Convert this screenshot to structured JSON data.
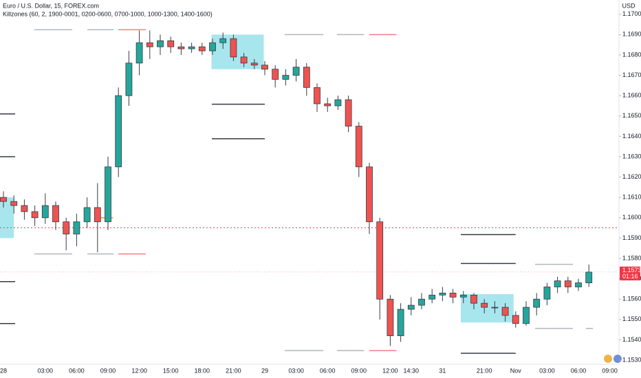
{
  "chart_data": {
    "type": "candlestick",
    "title": "Euro / U.S. Dollar, 15, FOREX.com",
    "subtitle": "Killzones (60, 2, 1900-0001, 0200-0600, 0700-1000, 1000-1300, 1400-1600)",
    "currency": "USD",
    "categories": [
      "28",
      null,
      null,
      null,
      "03:00",
      null,
      null,
      "06:00",
      null,
      null,
      "09:00",
      null,
      null,
      "12:00",
      null,
      null,
      "15:00",
      null,
      null,
      "18:00",
      null,
      null,
      "21:00",
      null,
      null,
      "29",
      null,
      null,
      "03:00",
      null,
      null,
      "06:00",
      null,
      null,
      "09:00",
      null,
      null,
      "12:00",
      null,
      "14:30",
      null,
      null,
      "31",
      null,
      null,
      null,
      "21:00",
      null,
      null,
      "Nov",
      null,
      null,
      "03:00",
      null,
      null,
      "06:00",
      null,
      null,
      "09:00"
    ],
    "open": [
      1.161,
      1.1608,
      1.1606,
      1.1603,
      1.16,
      1.1606,
      1.1598,
      1.1592,
      1.1598,
      1.1605,
      1.1598,
      1.1625,
      1.166,
      1.1676,
      1.1686,
      1.1684,
      1.1687,
      1.1684,
      1.1683,
      1.1684,
      1.1682,
      1.1686,
      1.1688,
      1.1679,
      1.1676,
      1.1675,
      1.1673,
      1.1668,
      1.167,
      1.1674,
      1.1664,
      1.1656,
      1.1655,
      1.1658,
      1.1645,
      1.1625,
      1.1598,
      1.156,
      1.1542,
      1.1555,
      1.1557,
      1.156,
      1.1562,
      1.1563,
      1.1561,
      1.1562,
      1.1558,
      1.1556,
      1.1556,
      1.1552,
      1.1548,
      1.1556,
      1.156,
      1.1566,
      1.1569,
      1.1566,
      1.1568,
      null,
      null
    ],
    "high": [
      1.1613,
      1.1611,
      1.1609,
      1.1606,
      1.1612,
      1.1608,
      1.16,
      1.1602,
      1.161,
      1.1617,
      1.163,
      1.1664,
      1.1682,
      1.1692,
      1.1692,
      1.169,
      1.1689,
      1.1686,
      1.1686,
      1.1686,
      1.1688,
      1.1691,
      1.169,
      1.1681,
      1.1678,
      1.1677,
      1.1675,
      1.1673,
      1.1678,
      1.1676,
      1.1666,
      1.1659,
      1.166,
      1.166,
      1.1647,
      1.1627,
      1.16,
      1.1562,
      1.1558,
      1.1561,
      1.1563,
      1.1565,
      1.1566,
      1.1565,
      1.1564,
      1.1563,
      1.156,
      1.1559,
      1.1558,
      1.1554,
      1.1559,
      1.1563,
      1.1568,
      1.1571,
      1.1571,
      1.157,
      1.1577,
      null,
      null
    ],
    "low": [
      1.1605,
      1.1602,
      1.1599,
      1.1596,
      1.1597,
      1.1594,
      1.1584,
      1.1586,
      1.1595,
      1.1583,
      1.1594,
      1.162,
      1.1655,
      1.167,
      1.1678,
      1.168,
      1.1681,
      1.168,
      1.1681,
      1.168,
      1.168,
      1.1683,
      1.1677,
      1.1674,
      1.1673,
      1.167,
      1.1664,
      1.1665,
      1.1667,
      1.166,
      1.1652,
      1.1652,
      1.1653,
      1.1642,
      1.162,
      1.1592,
      1.155,
      1.1537,
      1.1539,
      1.1552,
      1.1555,
      1.1558,
      1.1559,
      1.1558,
      1.1558,
      1.1555,
      1.1553,
      1.1553,
      1.1549,
      1.1546,
      1.1547,
      1.1552,
      1.1557,
      1.1563,
      1.1563,
      1.1564,
      1.1566,
      null,
      null
    ],
    "close": [
      1.1608,
      1.1606,
      1.1603,
      1.16,
      1.1606,
      1.1598,
      1.1592,
      1.1598,
      1.1605,
      1.1598,
      1.1625,
      1.166,
      1.1676,
      1.1686,
      1.1684,
      1.1687,
      1.1684,
      1.1683,
      1.1684,
      1.1682,
      1.1686,
      1.1688,
      1.1679,
      1.1676,
      1.1675,
      1.1673,
      1.1668,
      1.167,
      1.1674,
      1.1664,
      1.1656,
      1.1655,
      1.1658,
      1.1645,
      1.1625,
      1.1598,
      1.156,
      1.1542,
      1.1555,
      1.1557,
      1.156,
      1.1562,
      1.1563,
      1.1561,
      1.1562,
      1.1558,
      1.1556,
      1.1556,
      1.1552,
      1.1548,
      1.1556,
      1.156,
      1.1566,
      1.1569,
      1.1566,
      1.1568,
      1.15733,
      null,
      null
    ],
    "up_color": "#26a69a",
    "down_color": "#ef5350",
    "ylim": [
      1.1528,
      1.1707
    ],
    "yticks": [
      {
        "value": 1.153,
        "label": "1.15300"
      },
      {
        "value": 1.154,
        "label": "1.15400"
      },
      {
        "value": 1.155,
        "label": "1.15500"
      },
      {
        "value": 1.156,
        "label": "1.15600"
      },
      {
        "value": 1.157,
        "label": "1.15700"
      },
      {
        "value": 1.158,
        "label": "1.15800"
      },
      {
        "value": 1.159,
        "label": "1.15900"
      },
      {
        "value": 1.16,
        "label": "1.16000"
      },
      {
        "value": 1.161,
        "label": "1.16100"
      },
      {
        "value": 1.162,
        "label": "1.16200"
      },
      {
        "value": 1.163,
        "label": "1.16300"
      },
      {
        "value": 1.164,
        "label": "1.16400"
      },
      {
        "value": 1.165,
        "label": "1.16500"
      },
      {
        "value": 1.166,
        "label": "1.16600"
      },
      {
        "value": 1.167,
        "label": "1.16700"
      },
      {
        "value": 1.168,
        "label": "1.16800"
      },
      {
        "value": 1.169,
        "label": "1.16900"
      },
      {
        "value": 1.17,
        "label": "1.17000"
      }
    ],
    "zone_color": "#a8e6ee",
    "zones": [
      {
        "x": [
          -0.4,
          1.0
        ],
        "y": [
          1.159,
          1.161
        ]
      },
      {
        "x": [
          19.9,
          24.9
        ],
        "y": [
          1.1673,
          1.169
        ]
      },
      {
        "x": [
          43.75,
          48.8
        ],
        "y": [
          1.15485,
          1.15625
        ]
      }
    ],
    "levels": [
      {
        "y": 1.16924,
        "x": [
          2.96,
          6.58
        ],
        "color": "#b2b5be"
      },
      {
        "y": 1.16924,
        "x": [
          8.03,
          10.53
        ],
        "color": "#b2b5be"
      },
      {
        "y": 1.16924,
        "x": [
          10.99,
          13.62
        ],
        "color": "#f77c80"
      },
      {
        "y": 1.15822,
        "x": [
          2.96,
          6.58
        ],
        "color": "#b2b5be"
      },
      {
        "y": 1.15822,
        "x": [
          8.03,
          10.53
        ],
        "color": "#b2b5be"
      },
      {
        "y": 1.15822,
        "x": [
          10.99,
          13.62
        ],
        "color": "#f77c80"
      },
      {
        "y": 1.16558,
        "x": [
          19.93,
          25.0
        ],
        "color": "#363a45"
      },
      {
        "y": 1.16388,
        "x": [
          19.93,
          25.0
        ],
        "color": "#363a45"
      },
      {
        "y": 1.169,
        "x": [
          26.9,
          30.6
        ],
        "color": "#b2b5be"
      },
      {
        "y": 1.169,
        "x": [
          31.9,
          34.5
        ],
        "color": "#b2b5be"
      },
      {
        "y": 1.169,
        "x": [
          35.0,
          37.6
        ],
        "color": "#f77c80"
      },
      {
        "y": 1.15347,
        "x": [
          26.9,
          30.6
        ],
        "color": "#b2b5be"
      },
      {
        "y": 1.15347,
        "x": [
          31.9,
          34.5
        ],
        "color": "#b2b5be"
      },
      {
        "y": 1.15347,
        "x": [
          35.0,
          37.6
        ],
        "color": "#f77c80"
      },
      {
        "y": 1.15917,
        "x": [
          43.75,
          49.0
        ],
        "color": "#363a45"
      },
      {
        "y": 1.15775,
        "x": [
          43.75,
          49.0
        ],
        "color": "#363a45"
      },
      {
        "y": 1.15334,
        "x": [
          43.75,
          49.0
        ],
        "color": "#363a45"
      },
      {
        "y": 1.15771,
        "x": [
          50.86,
          54.47
        ],
        "color": "#b2b5be"
      },
      {
        "y": 1.15456,
        "x": [
          50.86,
          54.47
        ],
        "color": "#b2b5be"
      },
      {
        "y": 1.15456,
        "x": [
          55.7,
          56.4
        ],
        "color": "#b2b5be"
      },
      {
        "y": 1.1651,
        "x": [
          -0.33,
          1.12
        ],
        "color": "#363a45"
      },
      {
        "y": 1.163,
        "x": [
          -0.33,
          1.12
        ],
        "color": "#363a45"
      },
      {
        "y": 1.15686,
        "x": [
          -0.33,
          1.12
        ],
        "color": "#363a45"
      },
      {
        "y": 1.1548,
        "x": [
          -0.33,
          1.12
        ],
        "color": "#363a45"
      },
      {
        "y": 1.16,
        "x": [
          8.9,
          10.5
        ],
        "color": "#ff9800"
      }
    ],
    "reference_line": {
      "y": 1.15951,
      "color": "#f23645"
    },
    "last_price": {
      "value": 1.15733,
      "label": "1.15733"
    },
    "countdown": "01:16"
  }
}
